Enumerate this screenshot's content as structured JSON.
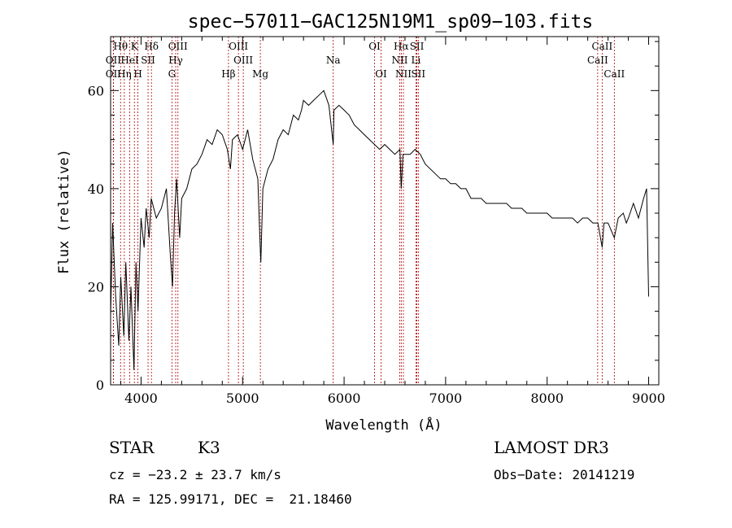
{
  "chart_data": {
    "type": "line",
    "title": "spec−57011−GAC125N19M1_sp09−103.fits",
    "xlabel": "Wavelength (Å)",
    "ylabel": "Flux (relative)",
    "xlim": [
      3700,
      9100
    ],
    "ylim": [
      0,
      71
    ],
    "xticks": [
      4000,
      5000,
      6000,
      7000,
      8000,
      9000
    ],
    "yticks": [
      0,
      20,
      40,
      60
    ],
    "grid": false,
    "series": [
      {
        "color": "#000000",
        "x": [
          3700,
          3720,
          3750,
          3780,
          3800,
          3830,
          3850,
          3880,
          3900,
          3930,
          3950,
          3970,
          4000,
          4030,
          4050,
          4080,
          4100,
          4150,
          4200,
          4250,
          4290,
          4310,
          4330,
          4350,
          4380,
          4400,
          4450,
          4500,
          4550,
          4600,
          4650,
          4700,
          4750,
          4800,
          4850,
          4880,
          4900,
          4950,
          5000,
          5050,
          5100,
          5150,
          5170,
          5180,
          5200,
          5250,
          5300,
          5350,
          5400,
          5450,
          5500,
          5550,
          5580,
          5600,
          5650,
          5700,
          5750,
          5800,
          5850,
          5893,
          5900,
          5950,
          6000,
          6050,
          6100,
          6150,
          6200,
          6250,
          6300,
          6350,
          6400,
          6450,
          6500,
          6550,
          6563,
          6580,
          6600,
          6650,
          6700,
          6750,
          6800,
          6850,
          6900,
          6950,
          7000,
          7050,
          7100,
          7150,
          7200,
          7250,
          7300,
          7350,
          7400,
          7450,
          7500,
          7550,
          7600,
          7650,
          7700,
          7750,
          7800,
          7850,
          7900,
          7950,
          8000,
          8050,
          8100,
          8150,
          8200,
          8250,
          8300,
          8350,
          8400,
          8450,
          8500,
          8542,
          8560,
          8600,
          8662,
          8700,
          8750,
          8780,
          8800,
          8850,
          8900,
          8950,
          8980,
          9000
        ],
        "y": [
          14,
          33,
          18,
          8,
          22,
          10,
          25,
          9,
          20,
          3,
          25,
          15,
          34,
          28,
          36,
          30,
          38,
          34,
          36,
          40,
          26,
          20,
          35,
          42,
          30,
          38,
          40,
          44,
          45,
          47,
          50,
          49,
          52,
          51,
          48,
          44,
          50,
          51,
          48,
          52,
          46,
          42,
          30,
          25,
          40,
          44,
          46,
          50,
          52,
          51,
          55,
          54,
          56,
          58,
          57,
          58,
          59,
          60,
          57,
          49,
          56,
          57,
          56,
          55,
          53,
          52,
          51,
          50,
          49,
          48,
          49,
          48,
          47,
          48,
          40,
          47,
          47,
          47,
          48,
          47,
          45,
          44,
          43,
          42,
          42,
          41,
          41,
          40,
          40,
          38,
          38,
          38,
          37,
          37,
          37,
          37,
          37,
          36,
          36,
          36,
          35,
          35,
          35,
          35,
          35,
          34,
          34,
          34,
          34,
          34,
          33,
          34,
          34,
          33,
          33,
          28,
          33,
          33,
          30,
          34,
          35,
          33,
          34,
          37,
          34,
          38,
          40,
          18
        ]
      }
    ],
    "line_markers": [
      {
        "label": "Hθ",
        "x": 3798,
        "row": 1
      },
      {
        "label": "OII",
        "x": 3727,
        "row": 2
      },
      {
        "label": "OII",
        "x": 3727,
        "row": 3
      },
      {
        "label": "K",
        "x": 3934,
        "row": 1
      },
      {
        "label": "HeI",
        "x": 3889,
        "row": 2
      },
      {
        "label": "Hη",
        "x": 3835,
        "row": 3
      },
      {
        "label": "H",
        "x": 3969,
        "row": 3
      },
      {
        "label": "SII",
        "x": 4069,
        "row": 2
      },
      {
        "label": "Hδ",
        "x": 4102,
        "row": 1
      },
      {
        "label": "OIII",
        "x": 4363,
        "row": 1
      },
      {
        "label": "Hγ",
        "x": 4341,
        "row": 2
      },
      {
        "label": "G",
        "x": 4304,
        "row": 3
      },
      {
        "label": "OIII",
        "x": 4959,
        "row": 1
      },
      {
        "label": "OIII",
        "x": 5007,
        "row": 2
      },
      {
        "label": "Hβ",
        "x": 4861,
        "row": 3
      },
      {
        "label": "Mg",
        "x": 5175,
        "row": 3
      },
      {
        "label": "Na",
        "x": 5893,
        "row": 2
      },
      {
        "label": "OI",
        "x": 6300,
        "row": 1
      },
      {
        "label": "OI",
        "x": 6364,
        "row": 3
      },
      {
        "label": "Hα",
        "x": 6563,
        "row": 1
      },
      {
        "label": "NII",
        "x": 6548,
        "row": 2
      },
      {
        "label": "NII",
        "x": 6584,
        "row": 3
      },
      {
        "label": "SII",
        "x": 6717,
        "row": 1
      },
      {
        "label": "Li",
        "x": 6708,
        "row": 2
      },
      {
        "label": "SII",
        "x": 6731,
        "row": 3
      },
      {
        "label": "CaII",
        "x": 8542,
        "row": 1
      },
      {
        "label": "CaII",
        "x": 8498,
        "row": 2
      },
      {
        "label": "CaII",
        "x": 8662,
        "row": 3
      }
    ]
  },
  "info": {
    "class_label": "STAR",
    "subclass": "K3",
    "cz": "cz = −23.2 ± 23.7 km/s",
    "radec": "RA = 125.99171, DEC =  21.18460",
    "survey": "LAMOST DR3",
    "obs_date": "Obs−Date: 20141219"
  }
}
